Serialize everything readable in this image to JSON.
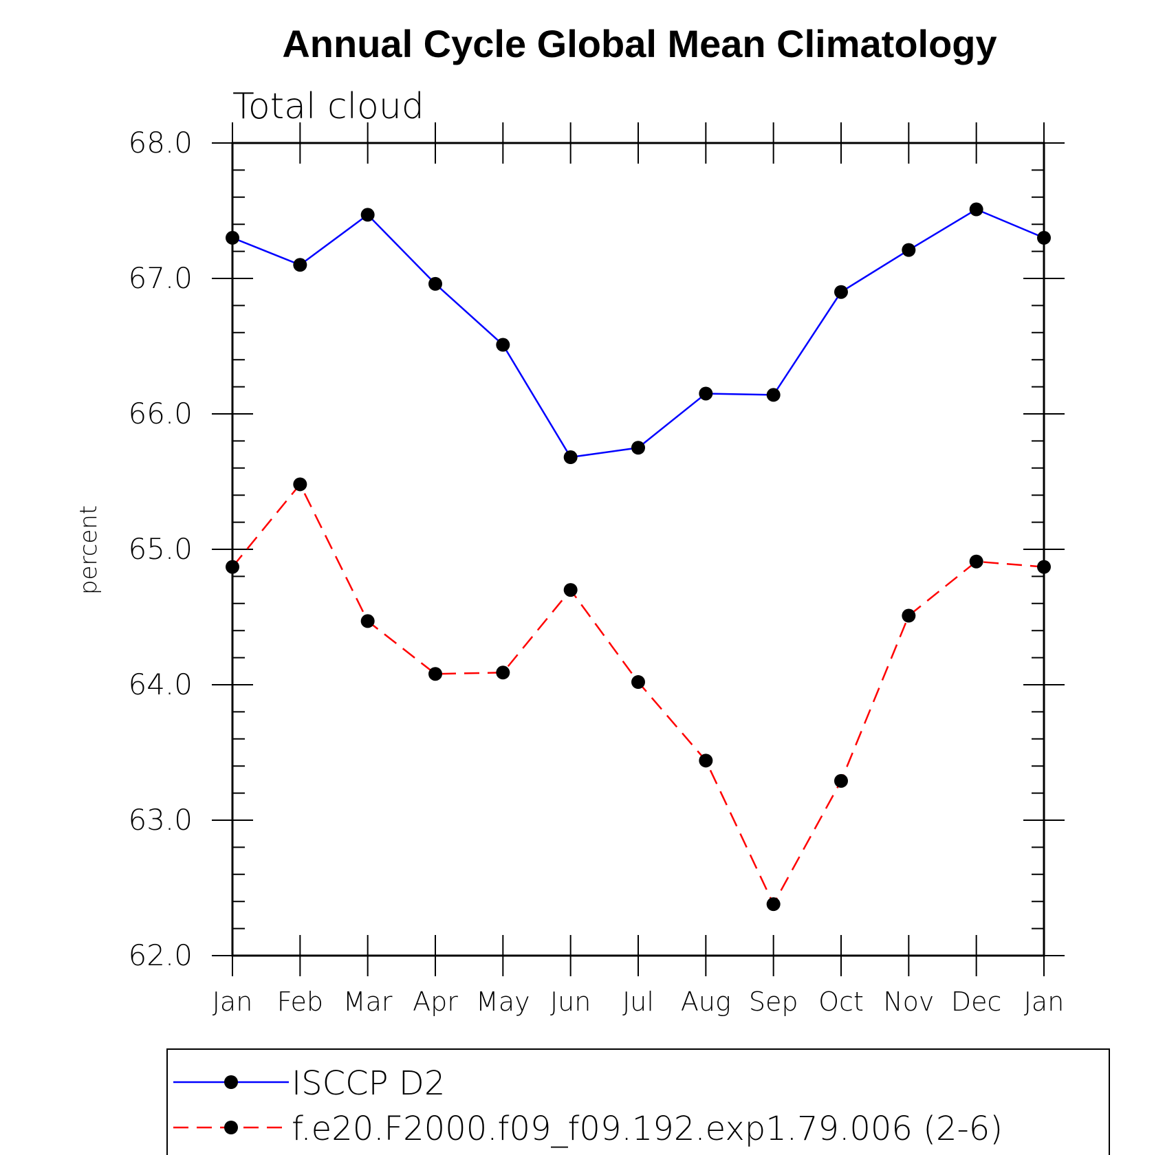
{
  "chart_data": {
    "type": "line",
    "title": "Annual Cycle Global Mean Climatology",
    "subtitle": "Total cloud",
    "xlabel": "",
    "ylabel": "percent",
    "categories": [
      "Jan",
      "Feb",
      "Mar",
      "Apr",
      "May",
      "Jun",
      "Jul",
      "Aug",
      "Sep",
      "Oct",
      "Nov",
      "Dec",
      "Jan"
    ],
    "ylim": [
      62.0,
      68.0
    ],
    "yticks": [
      "62.0",
      "63.0",
      "64.0",
      "65.0",
      "66.0",
      "67.0",
      "68.0"
    ],
    "grid": false,
    "legend_position": "bottom",
    "series": [
      {
        "name": "ISCCP D2",
        "color": "#0000ff",
        "line_style": "solid",
        "values": [
          67.3,
          67.1,
          67.47,
          66.96,
          66.51,
          65.68,
          65.75,
          66.15,
          66.14,
          66.9,
          67.21,
          67.51,
          67.3
        ]
      },
      {
        "name": "f.e20.F2000.f09_f09.192.exp1.79.006 (2-6)",
        "color": "#ff0000",
        "line_style": "dashed",
        "values": [
          64.87,
          65.48,
          64.47,
          64.08,
          64.09,
          64.7,
          64.02,
          63.44,
          62.38,
          63.29,
          64.51,
          64.91,
          64.87
        ]
      }
    ]
  }
}
